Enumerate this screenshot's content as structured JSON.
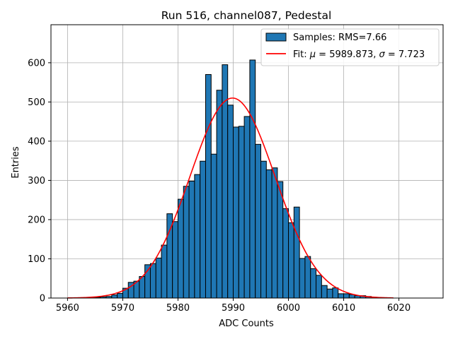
{
  "chart_data": {
    "type": "bar",
    "title": "Run 516, channel087, Pedestal",
    "xlabel": "ADC Counts",
    "ylabel": "Entries",
    "xlim": [
      5957,
      6028
    ],
    "ylim": [
      0,
      697
    ],
    "x_ticks": [
      5960,
      5970,
      5980,
      5990,
      6000,
      6010,
      6020
    ],
    "y_ticks": [
      0,
      100,
      200,
      300,
      400,
      500,
      600
    ],
    "grid": true,
    "legend_position": "top-right",
    "bar_color": "#1f77b4",
    "fit_color": "#ff0000",
    "bin_width": 1,
    "bin_starts": [
      5964,
      5965,
      5966,
      5967,
      5968,
      5969,
      5970,
      5971,
      5972,
      5973,
      5974,
      5975,
      5976,
      5977,
      5978,
      5979,
      5980,
      5981,
      5982,
      5983,
      5984,
      5985,
      5986,
      5987,
      5988,
      5989,
      5990,
      5991,
      5992,
      5993,
      5994,
      5995,
      5996,
      5997,
      5998,
      5999,
      6000,
      6001,
      6002,
      6003,
      6004,
      6005,
      6006,
      6007,
      6008,
      6009,
      6010,
      6011,
      6012,
      6013,
      6014,
      6015,
      6016
    ],
    "series": [
      {
        "name": "Samples: RMS=7.66",
        "kind": "histogram",
        "values": [
          1,
          2,
          3,
          4,
          8,
          12,
          25,
          40,
          43,
          55,
          85,
          88,
          102,
          135,
          215,
          195,
          252,
          285,
          298,
          315,
          349,
          570,
          367,
          530,
          595,
          492,
          436,
          438,
          463,
          607,
          392,
          349,
          327,
          332,
          297,
          228,
          192,
          232,
          101,
          106,
          75,
          58,
          32,
          23,
          26,
          11,
          11,
          9,
          6,
          6,
          4,
          2,
          1
        ]
      },
      {
        "name": "Fit: μ = 5989.873, σ = 7.723",
        "kind": "gaussian_fit",
        "mu": 5989.873,
        "sigma": 7.723,
        "amplitude": 510,
        "x_range": [
          5960,
          6019
        ]
      }
    ],
    "legend": {
      "samples_label": "Samples: RMS=7.66",
      "fit_label_prefix": "Fit: ",
      "fit_mu_symbol": "μ",
      "fit_mu_value": " = 5989.873, ",
      "fit_sigma_symbol": "σ",
      "fit_sigma_value": " = 7.723"
    }
  }
}
